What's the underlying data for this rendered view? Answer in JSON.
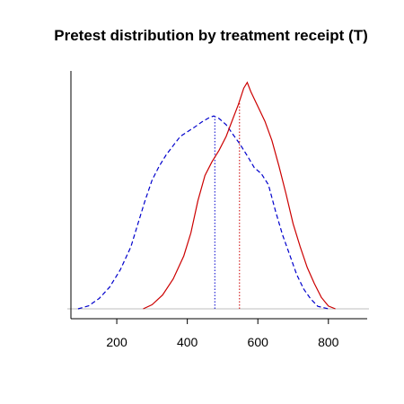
{
  "chart_data": {
    "type": "line",
    "title": "Pretest distribution by treatment receipt (T)",
    "xlabel": "",
    "ylabel": "",
    "xlim": [
      70,
      910
    ],
    "ylim": [
      0,
      1
    ],
    "x_ticks": [
      200,
      400,
      600,
      800
    ],
    "x_tick_labels": [
      "200",
      "400",
      "600",
      "800"
    ],
    "y_axis_ticks_shown": false,
    "grid": false,
    "legend": "none",
    "series": [
      {
        "color": "#0000cc",
        "line_style": "dashed",
        "mean_marker_x": 478,
        "points": [
          [
            90,
            0
          ],
          [
            120,
            0.013
          ],
          [
            150,
            0.045
          ],
          [
            180,
            0.095
          ],
          [
            210,
            0.17
          ],
          [
            240,
            0.27
          ],
          [
            260,
            0.37
          ],
          [
            280,
            0.47
          ],
          [
            300,
            0.56
          ],
          [
            320,
            0.62
          ],
          [
            340,
            0.67
          ],
          [
            360,
            0.71
          ],
          [
            380,
            0.75
          ],
          [
            400,
            0.77
          ],
          [
            420,
            0.79
          ],
          [
            440,
            0.812
          ],
          [
            460,
            0.83
          ],
          [
            475,
            0.839
          ],
          [
            490,
            0.828
          ],
          [
            510,
            0.801
          ],
          [
            530,
            0.758
          ],
          [
            550,
            0.715
          ],
          [
            570,
            0.666
          ],
          [
            590,
            0.614
          ],
          [
            610,
            0.588
          ],
          [
            630,
            0.54
          ],
          [
            650,
            0.425
          ],
          [
            670,
            0.322
          ],
          [
            690,
            0.236
          ],
          [
            710,
            0.15
          ],
          [
            730,
            0.086
          ],
          [
            750,
            0.043
          ],
          [
            770,
            0.011
          ],
          [
            800,
            0
          ]
        ]
      },
      {
        "color": "#cc0000",
        "line_style": "solid",
        "mean_marker_x": 548,
        "points": [
          [
            275,
            0
          ],
          [
            300,
            0.018
          ],
          [
            330,
            0.06
          ],
          [
            360,
            0.13
          ],
          [
            390,
            0.23
          ],
          [
            410,
            0.33
          ],
          [
            430,
            0.47
          ],
          [
            450,
            0.58
          ],
          [
            470,
            0.64
          ],
          [
            490,
            0.69
          ],
          [
            510,
            0.75
          ],
          [
            530,
            0.83
          ],
          [
            545,
            0.89
          ],
          [
            560,
            0.96
          ],
          [
            570,
            0.985
          ],
          [
            580,
            0.945
          ],
          [
            600,
            0.881
          ],
          [
            620,
            0.816
          ],
          [
            640,
            0.732
          ],
          [
            660,
            0.62
          ],
          [
            680,
            0.5
          ],
          [
            700,
            0.37
          ],
          [
            720,
            0.27
          ],
          [
            740,
            0.18
          ],
          [
            760,
            0.11
          ],
          [
            780,
            0.05
          ],
          [
            800,
            0.012
          ],
          [
            820,
            0
          ]
        ]
      }
    ]
  }
}
